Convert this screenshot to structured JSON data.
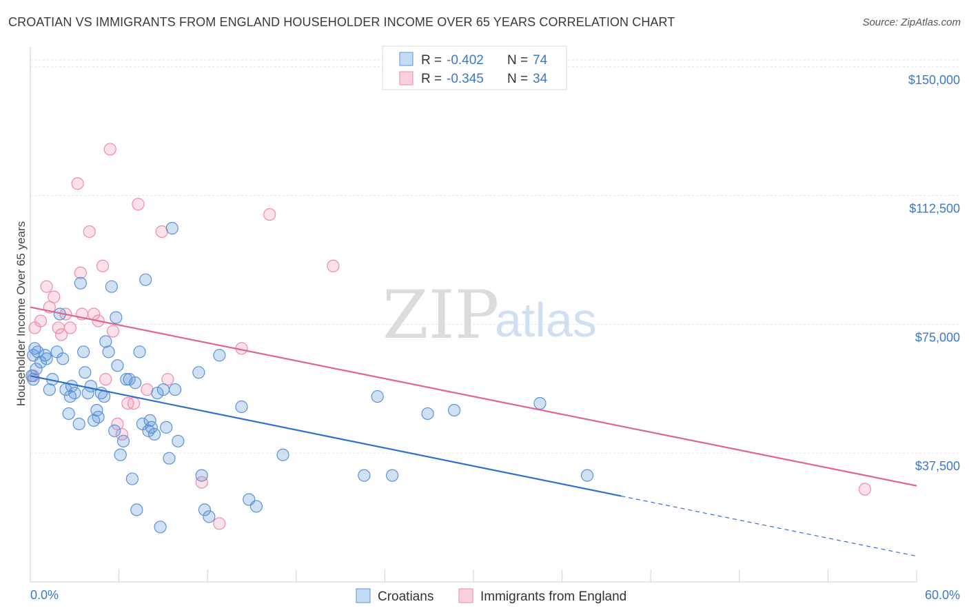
{
  "title": "CROATIAN VS IMMIGRANTS FROM ENGLAND HOUSEHOLDER INCOME OVER 65 YEARS CORRELATION CHART",
  "source": "Source: ZipAtlas.com",
  "watermark": {
    "part1": "ZIP",
    "part2": "atlas"
  },
  "colors": {
    "croatians": "#5b93d8",
    "england": "#f08aaa",
    "croatians_line": "#2f6fcc",
    "england_line": "#e0648f",
    "axis_label": "#3b78c9"
  },
  "legend": {
    "rows": [
      {
        "r_label": "R = ",
        "r_value": "-0.402",
        "n_label": "N = ",
        "n_value": "74"
      },
      {
        "r_label": "R = ",
        "r_value": "-0.345",
        "n_label": "N = ",
        "n_value": "34"
      }
    ]
  },
  "bottom_legend": [
    "Croatians",
    "Immigrants from England"
  ],
  "chart_data": {
    "type": "scatter",
    "ylabel": "Householder Income Over 65 years",
    "xlim": [
      0,
      60
    ],
    "ylim": [
      0,
      155000
    ],
    "x_tick_labels": {
      "min": "0.0%",
      "max": "60.0%"
    },
    "y_ticks": [
      {
        "value": 37500,
        "label": "$37,500"
      },
      {
        "value": 75000,
        "label": "$75,000"
      },
      {
        "value": 112500,
        "label": "$112,500"
      },
      {
        "value": 150000,
        "label": "$150,000"
      }
    ],
    "grid": true,
    "legend_position": "top-center",
    "series": [
      {
        "name": "Croatians",
        "r": -0.402,
        "n": 74,
        "trend": {
          "x0": 0,
          "y0": 60000,
          "x1": 40,
          "y1": 25000,
          "dash_to_x": 60,
          "dash_to_y": 7500
        },
        "points": [
          [
            0.1,
            60000
          ],
          [
            0.2,
            59000
          ],
          [
            0.2,
            66000
          ],
          [
            0.3,
            68000
          ],
          [
            0.5,
            67000
          ],
          [
            0.7,
            64000
          ],
          [
            1.0,
            66000
          ],
          [
            1.1,
            65000
          ],
          [
            1.3,
            56000
          ],
          [
            1.5,
            59000
          ],
          [
            1.8,
            67000
          ],
          [
            2.0,
            78000
          ],
          [
            2.2,
            65000
          ],
          [
            2.4,
            56000
          ],
          [
            2.6,
            49000
          ],
          [
            2.7,
            54000
          ],
          [
            2.8,
            57000
          ],
          [
            3.0,
            55000
          ],
          [
            3.3,
            46000
          ],
          [
            3.4,
            87000
          ],
          [
            3.6,
            67000
          ],
          [
            3.7,
            61000
          ],
          [
            3.9,
            55000
          ],
          [
            4.1,
            57000
          ],
          [
            4.3,
            47000
          ],
          [
            4.5,
            50000
          ],
          [
            4.6,
            48000
          ],
          [
            4.8,
            55000
          ],
          [
            5.0,
            54000
          ],
          [
            5.1,
            70000
          ],
          [
            5.3,
            67000
          ],
          [
            5.5,
            86000
          ],
          [
            5.7,
            44000
          ],
          [
            5.8,
            77000
          ],
          [
            5.9,
            63000
          ],
          [
            6.1,
            37000
          ],
          [
            6.3,
            41000
          ],
          [
            6.5,
            59000
          ],
          [
            6.7,
            59000
          ],
          [
            6.9,
            30000
          ],
          [
            7.1,
            58000
          ],
          [
            7.2,
            21000
          ],
          [
            7.4,
            67000
          ],
          [
            7.6,
            46000
          ],
          [
            7.8,
            88000
          ],
          [
            8.0,
            44000
          ],
          [
            8.1,
            47000
          ],
          [
            8.2,
            45000
          ],
          [
            8.4,
            43000
          ],
          [
            8.6,
            55000
          ],
          [
            8.8,
            16000
          ],
          [
            9.0,
            56000
          ],
          [
            9.2,
            45000
          ],
          [
            9.4,
            36000
          ],
          [
            9.6,
            103000
          ],
          [
            9.8,
            56000
          ],
          [
            10.0,
            41000
          ],
          [
            11.4,
            61000
          ],
          [
            11.6,
            31000
          ],
          [
            11.8,
            21000
          ],
          [
            12.1,
            19000
          ],
          [
            12.8,
            66000
          ],
          [
            14.3,
            51000
          ],
          [
            14.8,
            24000
          ],
          [
            15.3,
            22000
          ],
          [
            17.1,
            37000
          ],
          [
            22.6,
            31000
          ],
          [
            23.5,
            54000
          ],
          [
            24.5,
            31000
          ],
          [
            26.9,
            49000
          ],
          [
            28.7,
            50000
          ],
          [
            34.5,
            52000
          ],
          [
            37.7,
            31000
          ],
          [
            0.4,
            62000
          ]
        ]
      },
      {
        "name": "Immigrants from England",
        "r": -0.345,
        "n": 34,
        "trend": {
          "x0": 0,
          "y0": 80000,
          "x1": 60,
          "y1": 28000
        },
        "points": [
          [
            0.2,
            60000
          ],
          [
            0.3,
            74000
          ],
          [
            0.7,
            76000
          ],
          [
            1.1,
            86000
          ],
          [
            1.3,
            80000
          ],
          [
            1.6,
            83000
          ],
          [
            1.9,
            74000
          ],
          [
            2.1,
            72000
          ],
          [
            2.4,
            78000
          ],
          [
            2.7,
            74000
          ],
          [
            3.2,
            116000
          ],
          [
            3.4,
            90000
          ],
          [
            3.5,
            78000
          ],
          [
            4.0,
            102000
          ],
          [
            4.3,
            78000
          ],
          [
            4.6,
            76000
          ],
          [
            4.9,
            92000
          ],
          [
            5.1,
            59000
          ],
          [
            5.4,
            126000
          ],
          [
            5.6,
            73000
          ],
          [
            5.9,
            46000
          ],
          [
            6.2,
            43000
          ],
          [
            6.6,
            52000
          ],
          [
            7.0,
            52000
          ],
          [
            7.3,
            110000
          ],
          [
            7.9,
            56000
          ],
          [
            8.9,
            102000
          ],
          [
            9.3,
            59000
          ],
          [
            11.6,
            29000
          ],
          [
            12.8,
            17000
          ],
          [
            14.3,
            68000
          ],
          [
            16.2,
            107000
          ],
          [
            20.5,
            92000
          ],
          [
            56.5,
            27000
          ]
        ]
      }
    ]
  }
}
